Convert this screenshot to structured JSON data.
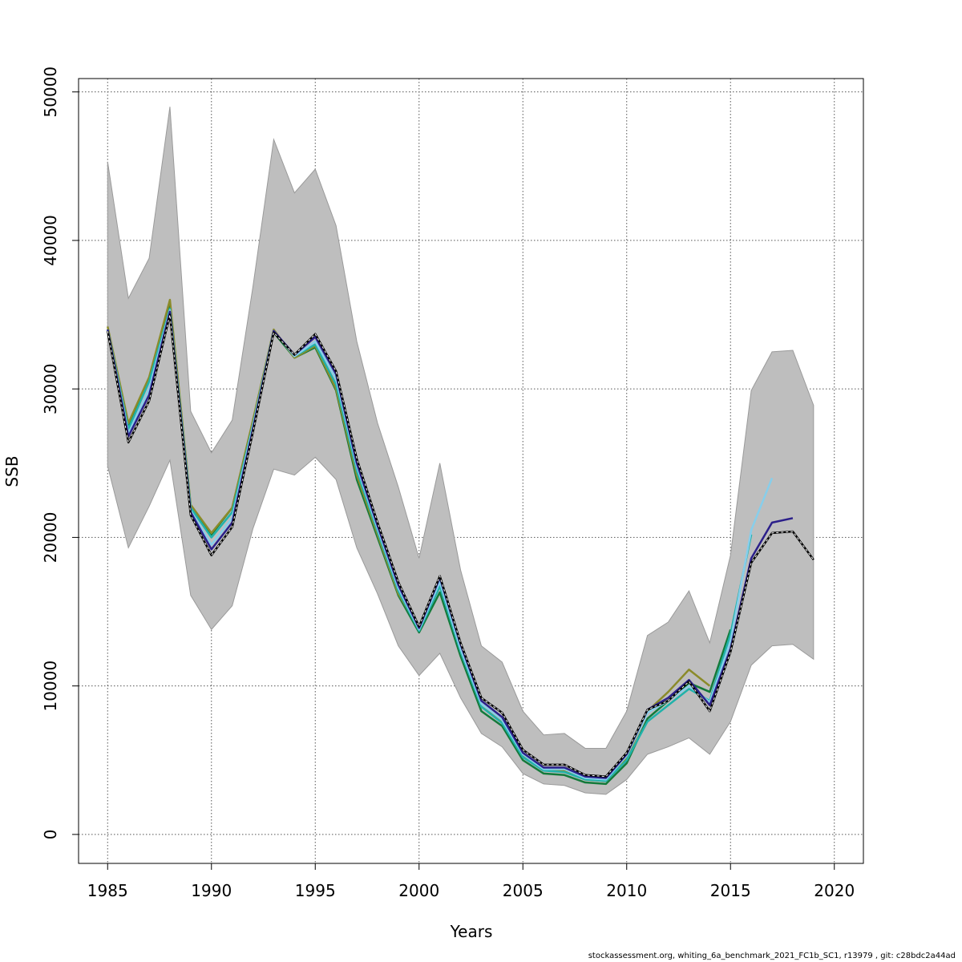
{
  "footer": "stockassessment.org, whiting_6a_benchmark_2021_FC1b_SC1, r13979 , git: c28bdc2a44ad",
  "chart_data": {
    "type": "line",
    "title": "",
    "xlabel": "Years",
    "ylabel": "SSB",
    "xlim": [
      1983.6,
      2021.4
    ],
    "ylim": [
      -1950,
      50900
    ],
    "xticks": [
      1985,
      1990,
      1995,
      2000,
      2005,
      2010,
      2015,
      2020
    ],
    "yticks": [
      0,
      10000,
      20000,
      30000,
      40000,
      50000
    ],
    "grid": true,
    "legend": "none",
    "band": {
      "x": [
        1985,
        1986,
        1987,
        1988,
        1989,
        1990,
        1991,
        1992,
        1993,
        1994,
        1995,
        1996,
        1997,
        1998,
        1999,
        2000,
        2001,
        2002,
        2003,
        2004,
        2005,
        2006,
        2007,
        2008,
        2009,
        2010,
        2011,
        2012,
        2013,
        2014,
        2015,
        2016,
        2017,
        2018,
        2019
      ],
      "lower": [
        24800,
        19300,
        22100,
        25200,
        16100,
        13800,
        15400,
        20600,
        24600,
        24200,
        25400,
        23900,
        19300,
        16200,
        12700,
        10700,
        12200,
        9200,
        6800,
        5900,
        4100,
        3400,
        3300,
        2800,
        2700,
        3700,
        5400,
        5900,
        6500,
        5400,
        7600,
        11400,
        12700,
        12800,
        11800
      ],
      "upper": [
        45300,
        36100,
        38800,
        49000,
        28500,
        25700,
        27900,
        36900,
        46800,
        43200,
        44800,
        41000,
        33200,
        27700,
        23400,
        18600,
        25000,
        17800,
        12700,
        11600,
        8300,
        6700,
        6800,
        5800,
        5800,
        8300,
        13400,
        14300,
        16400,
        12900,
        18800,
        29900,
        32500,
        32600,
        28900
      ]
    },
    "series": [
      {
        "color": "#000000",
        "dashed": true,
        "x": [
          1985,
          1986,
          1987,
          1988,
          1989,
          1990,
          1991,
          1992,
          1993,
          1994,
          1995,
          1996,
          1997,
          1998,
          1999,
          2000,
          2001,
          2002,
          2003,
          2004,
          2005,
          2006,
          2007,
          2008,
          2009,
          2010,
          2011,
          2012,
          2013,
          2014,
          2015,
          2016,
          2017,
          2018,
          2019
        ],
        "values": [
          33900,
          26400,
          29200,
          35000,
          21500,
          18800,
          20700,
          27100,
          33800,
          32300,
          33700,
          31200,
          25300,
          21000,
          17000,
          14000,
          17400,
          12900,
          9200,
          8200,
          5700,
          4700,
          4700,
          4000,
          3900,
          5500,
          8400,
          9000,
          10300,
          8300,
          12300,
          18300,
          20300,
          20400,
          18500
        ]
      },
      {
        "color": "#2b1f8a",
        "dashed": false,
        "x": [
          1985,
          1986,
          1987,
          1988,
          1989,
          1990,
          1991,
          1992,
          1993,
          1994,
          1995,
          1996,
          1997,
          1998,
          1999,
          2000,
          2001,
          2002,
          2003,
          2004,
          2005,
          2006,
          2007,
          2008,
          2009,
          2010,
          2011,
          2012,
          2013,
          2014,
          2015,
          2016,
          2017,
          2018
        ],
        "values": [
          34000,
          26800,
          29600,
          35200,
          21700,
          19200,
          21000,
          27300,
          33900,
          32300,
          33500,
          31000,
          25000,
          20800,
          16800,
          13900,
          17300,
          12800,
          9000,
          7900,
          5500,
          4500,
          4500,
          3900,
          3800,
          5400,
          8400,
          9200,
          10400,
          8700,
          12500,
          18600,
          21000,
          21300
        ]
      },
      {
        "color": "#87ceeb",
        "dashed": false,
        "x": [
          1985,
          1986,
          1987,
          1988,
          1989,
          1990,
          1991,
          1992,
          1993,
          1994,
          1995,
          1996,
          1997,
          1998,
          1999,
          2000,
          2001,
          2002,
          2003,
          2004,
          2005,
          2006,
          2007,
          2008,
          2009,
          2010,
          2011,
          2012,
          2013,
          2014,
          2015,
          2016,
          2017
        ],
        "values": [
          34000,
          27000,
          30000,
          35300,
          21800,
          19500,
          21300,
          27500,
          33900,
          32200,
          33200,
          30700,
          24800,
          20600,
          16600,
          13800,
          17000,
          12500,
          8800,
          7700,
          5400,
          4400,
          4400,
          3800,
          3700,
          5300,
          8200,
          9000,
          10000,
          8900,
          13000,
          20500,
          24000
        ]
      },
      {
        "color": "#20b2aa",
        "dashed": false,
        "x": [
          1985,
          1986,
          1987,
          1988,
          1989,
          1990,
          1991,
          1992,
          1993,
          1994,
          1995,
          1996,
          1997,
          1998,
          1999,
          2000,
          2001,
          2002,
          2003,
          2004,
          2005,
          2006,
          2007,
          2008,
          2009,
          2010,
          2011,
          2012,
          2013,
          2014,
          2015,
          2016
        ],
        "values": [
          34000,
          27300,
          30500,
          35400,
          22000,
          20000,
          21700,
          27600,
          33900,
          32200,
          33000,
          30300,
          24500,
          20400,
          16400,
          13700,
          16700,
          12300,
          8600,
          7500,
          5200,
          4300,
          4200,
          3700,
          3600,
          5000,
          7600,
          8700,
          9800,
          9000,
          13500,
          20200
        ]
      },
      {
        "color": "#8b8b2a",
        "dashed": false,
        "x": [
          1985,
          1986,
          1987,
          1988,
          1989,
          1990,
          1991,
          1992,
          1993,
          1994,
          1995,
          1996,
          1997,
          1998,
          1999,
          2000,
          2001,
          2002,
          2003,
          2004,
          2005,
          2006,
          2007,
          2008,
          2009,
          2010,
          2011,
          2012,
          2013,
          2014
        ],
        "values": [
          34200,
          27700,
          30800,
          36000,
          22200,
          20300,
          22000,
          27900,
          34000,
          32100,
          32900,
          30000,
          24200,
          20200,
          16200,
          13900,
          17000,
          12400,
          8600,
          7600,
          5300,
          4300,
          4300,
          3700,
          3600,
          5100,
          8300,
          9600,
          11100,
          10000
        ]
      },
      {
        "color": "#137a3a",
        "dashed": false,
        "x": [
          1985,
          1986,
          1987,
          1988,
          1989,
          1990,
          1991,
          1992,
          1993,
          1994,
          1995,
          1996,
          1997,
          1998,
          1999,
          2000,
          2001,
          2002,
          2003,
          2004,
          2005,
          2006,
          2007,
          2008,
          2009,
          2010,
          2011,
          2012,
          2013,
          2014,
          2015
        ],
        "values": [
          33900,
          27400,
          30700,
          35800,
          22100,
          20200,
          22000,
          27800,
          33800,
          32100,
          32800,
          29900,
          23900,
          20000,
          16100,
          13600,
          16300,
          12000,
          8300,
          7300,
          5000,
          4100,
          4000,
          3500,
          3400,
          4800,
          7800,
          9000,
          10200,
          9600,
          13800
        ]
      }
    ]
  }
}
